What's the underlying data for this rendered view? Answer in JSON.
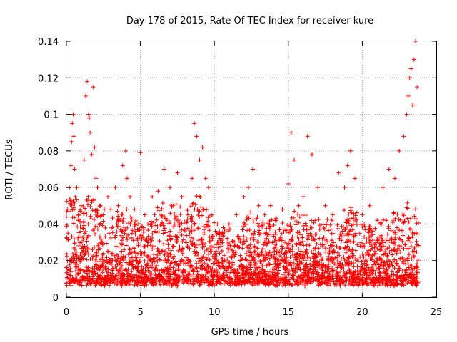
{
  "chart_data": {
    "type": "scatter",
    "title": "Day 178 of 2015, Rate Of TEC Index for receiver kure",
    "xlabel": "GPS time / hours",
    "ylabel": "ROTI / TECUs",
    "xlim": [
      0,
      25
    ],
    "ylim": [
      0,
      0.14
    ],
    "x_ticks": [
      "0",
      "5",
      "10",
      "15",
      "20",
      "25"
    ],
    "y_ticks": [
      "0",
      "0.02",
      "0.04",
      "0.06",
      "0.08",
      "0.1",
      "0.12",
      "0.14"
    ],
    "grid": true,
    "marker": "+",
    "color": "#ff0000",
    "series": [
      {
        "x": [
          0.1,
          0.2,
          0.3,
          0.35,
          0.4,
          0.45,
          0.5,
          0.55,
          0.6,
          0.7,
          0.8,
          1.0,
          1.2,
          1.3,
          1.4,
          1.5,
          1.55,
          1.6,
          1.7,
          1.8,
          1.9,
          2.0,
          2.1,
          2.3,
          2.5,
          2.8,
          3.0,
          3.3,
          3.5,
          3.8,
          4.0,
          4.1,
          4.3,
          4.6,
          5.0,
          5.3,
          5.5,
          5.8,
          6.2,
          6.6,
          7.0,
          7.2,
          7.5,
          7.8,
          8.2,
          8.5,
          8.65,
          8.8,
          9.0,
          9.2,
          9.4,
          9.6,
          9.8,
          10.2,
          10.6,
          11.0,
          11.5,
          12.0,
          12.3,
          12.6,
          13.0,
          13.4,
          13.8,
          14.2,
          14.6,
          15.0,
          15.2,
          15.4,
          15.7,
          16.0,
          16.3,
          16.6,
          17.0,
          17.5,
          18.0,
          18.4,
          18.8,
          19.0,
          19.2,
          19.5,
          20.0,
          20.5,
          21.0,
          21.4,
          21.8,
          22.2,
          22.5,
          22.8,
          23.0,
          23.1,
          23.2,
          23.3,
          23.4,
          23.5,
          23.6,
          23.7,
          0.2,
          1.4,
          2.0,
          4.0,
          6.8,
          8.7,
          9.5,
          12.7,
          15.3,
          16.2,
          18.2,
          19.1,
          21.5,
          22.6,
          23.4
        ],
        "y": [
          0.035,
          0.06,
          0.072,
          0.085,
          0.095,
          0.1,
          0.088,
          0.07,
          0.055,
          0.06,
          0.045,
          0.05,
          0.075,
          0.11,
          0.118,
          0.1,
          0.098,
          0.09,
          0.078,
          0.115,
          0.082,
          0.065,
          0.06,
          0.05,
          0.045,
          0.055,
          0.048,
          0.06,
          0.05,
          0.072,
          0.08,
          0.065,
          0.055,
          0.048,
          0.079,
          0.045,
          0.04,
          0.055,
          0.058,
          0.07,
          0.06,
          0.05,
          0.068,
          0.055,
          0.045,
          0.065,
          0.095,
          0.088,
          0.075,
          0.082,
          0.065,
          0.06,
          0.045,
          0.04,
          0.038,
          0.04,
          0.045,
          0.055,
          0.06,
          0.07,
          0.05,
          0.045,
          0.05,
          0.042,
          0.048,
          0.062,
          0.09,
          0.075,
          0.05,
          0.055,
          0.088,
          0.078,
          0.06,
          0.05,
          0.045,
          0.068,
          0.06,
          0.072,
          0.08,
          0.065,
          0.045,
          0.05,
          0.042,
          0.06,
          0.07,
          0.065,
          0.08,
          0.088,
          0.1,
          0.11,
          0.12,
          0.125,
          0.105,
          0.13,
          0.14,
          0.115,
          0.02,
          0.025,
          0.018,
          0.022,
          0.019,
          0.024,
          0.021,
          0.017,
          0.023,
          0.02,
          0.018,
          0.022,
          0.019,
          0.021,
          0.025
        ]
      }
    ],
    "band": {
      "x": [
        0,
        0.5,
        1.0,
        1.5,
        2.0,
        2.5,
        3.0,
        3.5,
        4.0,
        4.5,
        5.0,
        5.5,
        6.0,
        6.5,
        7.0,
        7.5,
        8.0,
        8.5,
        9.0,
        9.5,
        10.0,
        10.5,
        11.0,
        11.5,
        12.0,
        12.5,
        13.0,
        13.5,
        14.0,
        14.5,
        15.0,
        15.5,
        16.0,
        16.5,
        17.0,
        17.5,
        18.0,
        18.5,
        19.0,
        19.5,
        20.0,
        20.5,
        21.0,
        21.5,
        22.0,
        22.5,
        23.0,
        23.5,
        23.8
      ],
      "y_low": [
        0.006,
        0.006,
        0.006,
        0.006,
        0.006,
        0.006,
        0.006,
        0.006,
        0.006,
        0.006,
        0.006,
        0.006,
        0.006,
        0.006,
        0.006,
        0.006,
        0.006,
        0.006,
        0.006,
        0.006,
        0.006,
        0.006,
        0.006,
        0.006,
        0.006,
        0.006,
        0.006,
        0.006,
        0.006,
        0.006,
        0.006,
        0.006,
        0.006,
        0.006,
        0.006,
        0.006,
        0.006,
        0.006,
        0.006,
        0.006,
        0.006,
        0.006,
        0.006,
        0.006,
        0.006,
        0.006,
        0.006,
        0.006,
        0.006
      ],
      "y_high": [
        0.05,
        0.055,
        0.045,
        0.06,
        0.05,
        0.045,
        0.04,
        0.045,
        0.05,
        0.04,
        0.04,
        0.035,
        0.045,
        0.05,
        0.05,
        0.048,
        0.045,
        0.055,
        0.055,
        0.05,
        0.04,
        0.035,
        0.035,
        0.03,
        0.04,
        0.045,
        0.04,
        0.04,
        0.04,
        0.04,
        0.04,
        0.045,
        0.045,
        0.04,
        0.04,
        0.04,
        0.04,
        0.045,
        0.05,
        0.045,
        0.04,
        0.04,
        0.035,
        0.04,
        0.045,
        0.045,
        0.05,
        0.05,
        0.04
      ]
    }
  }
}
